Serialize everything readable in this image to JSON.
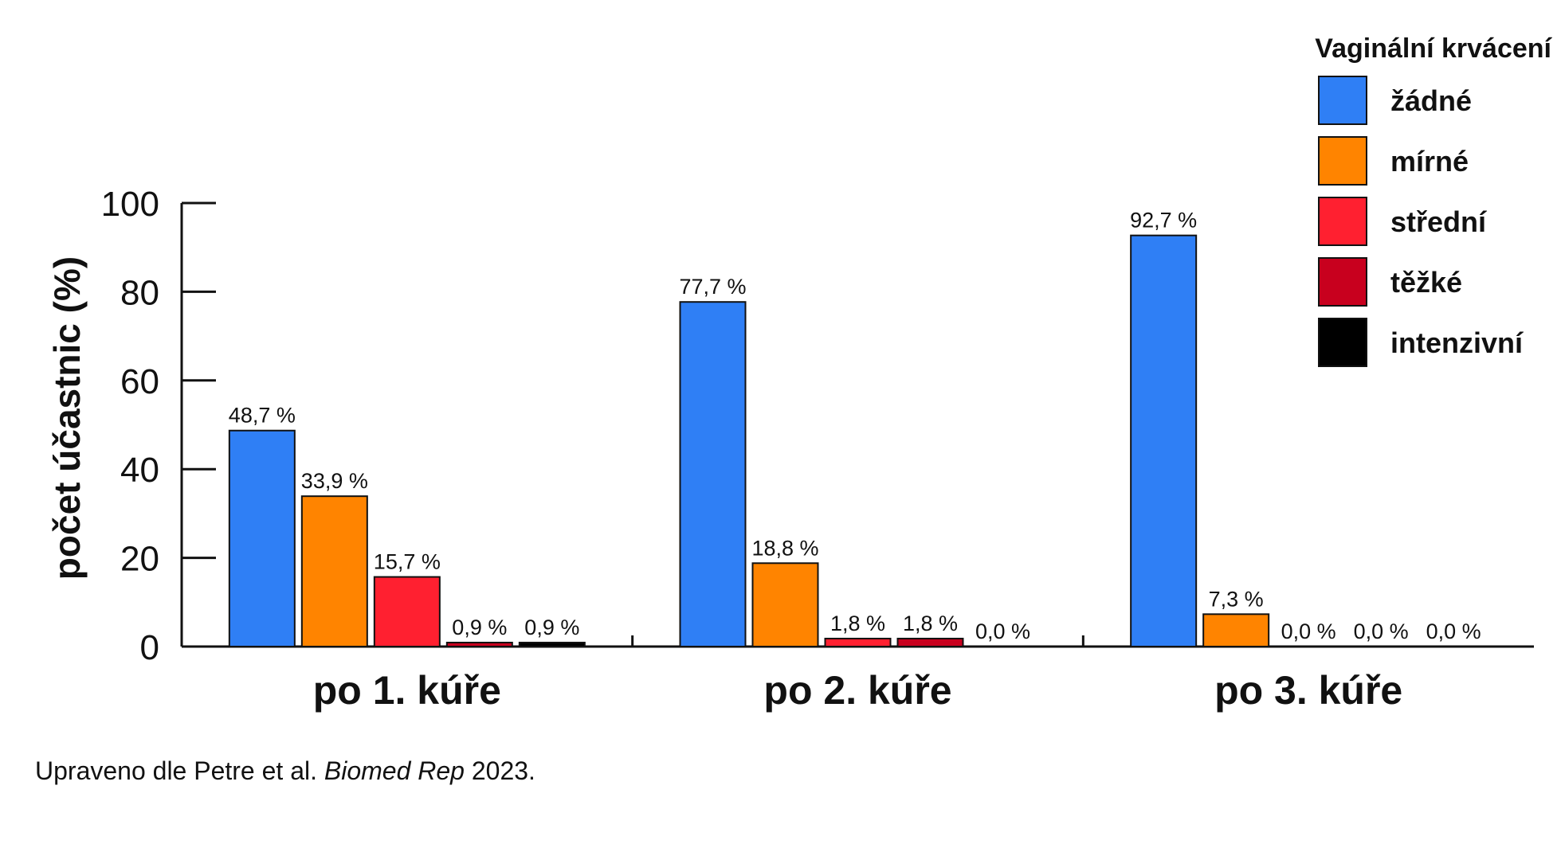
{
  "chart_data": {
    "type": "bar",
    "categories": [
      "po 1. kúře",
      "po 2. kúře",
      "po 3. kúře"
    ],
    "series": [
      {
        "name": "žádné",
        "values": [
          48.7,
          77.7,
          92.7
        ],
        "labels": [
          "48,7 %",
          "77,7 %",
          "92,7 %"
        ]
      },
      {
        "name": "mírné",
        "values": [
          33.9,
          18.8,
          7.3
        ],
        "labels": [
          "33,9 %",
          "18,8 %",
          "7,3 %"
        ]
      },
      {
        "name": "střední",
        "values": [
          15.7,
          1.8,
          0.0
        ],
        "labels": [
          "15,7 %",
          "1,8 %",
          "0,0 %"
        ]
      },
      {
        "name": "těžké",
        "values": [
          0.9,
          1.8,
          0.0
        ],
        "labels": [
          "0,9 %",
          "1,8 %",
          "0,0 %"
        ]
      },
      {
        "name": "intenzivní",
        "values": [
          0.9,
          0.0,
          0.0
        ],
        "labels": [
          "0,9 %",
          "0,0 %",
          "0,0 %"
        ]
      }
    ],
    "colors": [
      "#2F7FF5",
      "#FF8400",
      "#FF2030",
      "#C8001E",
      "#000000"
    ],
    "ylabel": "počet účastnic (%)",
    "ylim": [
      0,
      100
    ],
    "yticks": [
      0,
      20,
      40,
      60,
      80,
      100
    ],
    "legend_title": "Vaginální krvácení",
    "legend_position": "top-right",
    "grid": false
  },
  "source": {
    "prefix": "Upraveno dle Petre et al.",
    "journal": "Biomed Rep",
    "year": "2023."
  }
}
